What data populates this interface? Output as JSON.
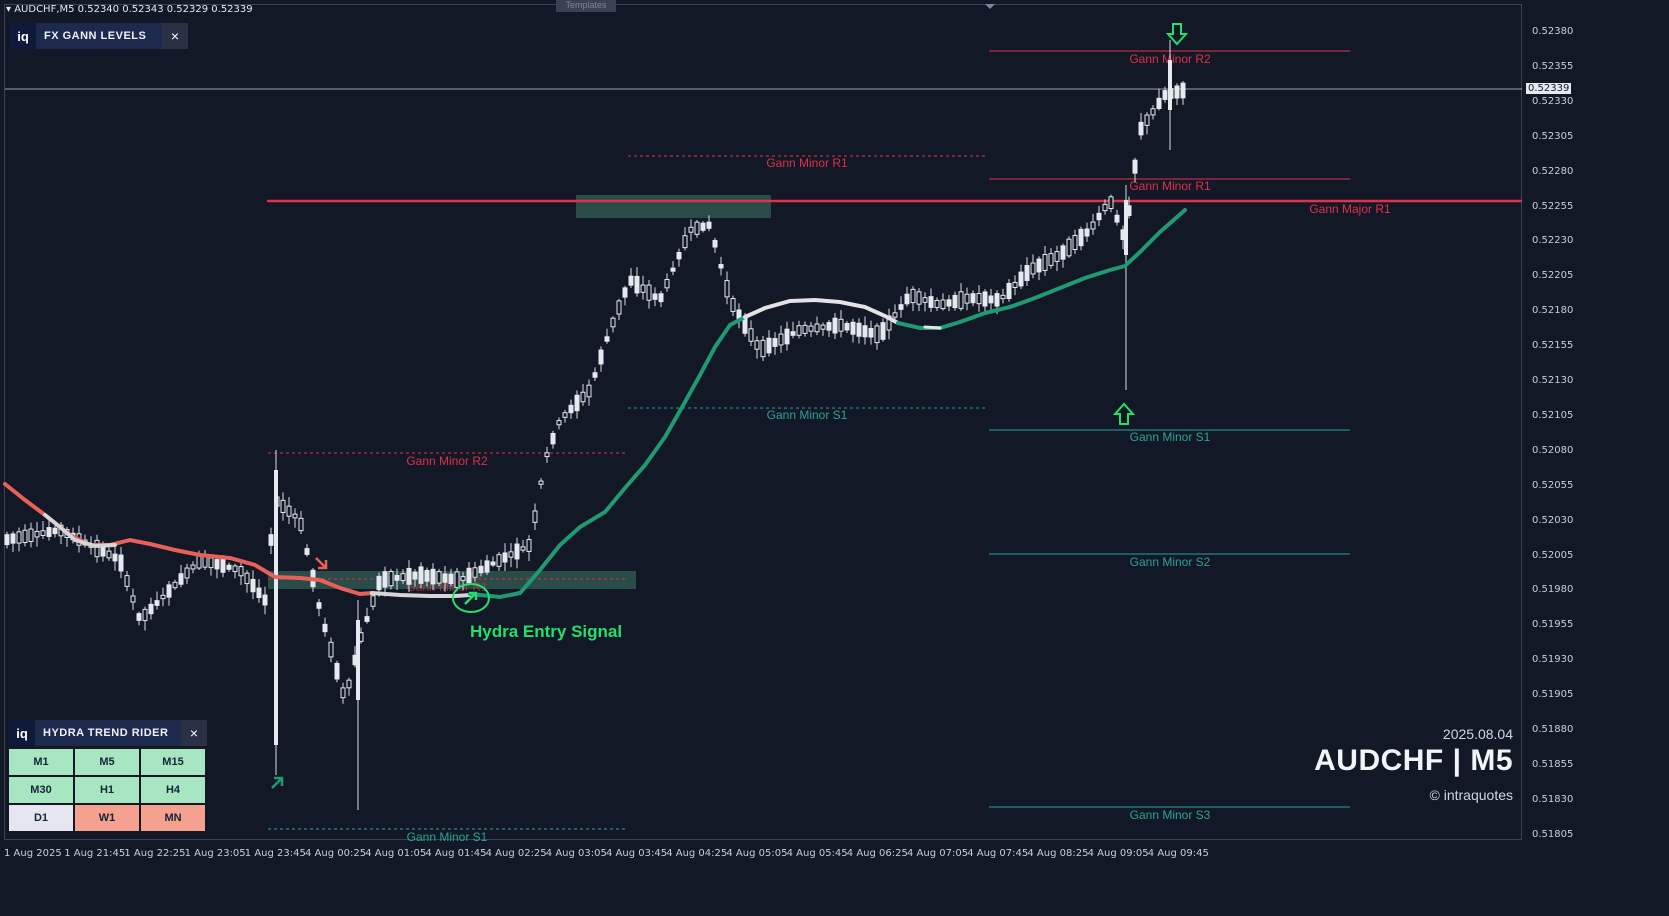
{
  "header": {
    "symbol_line": "AUDCHF,M5  0.52340 0.52343 0.52329 0.52339",
    "templates_label": "Templates"
  },
  "fx_gann_panel": {
    "logo": "iq",
    "title": "FX GANN LEVELS",
    "close": "×"
  },
  "hydra_panel": {
    "logo": "iq",
    "title": "HYDRA TREND RIDER",
    "close": "×",
    "timeframes": [
      {
        "label": "M1",
        "color": "#a8e6c1"
      },
      {
        "label": "M5",
        "color": "#a8e6c1"
      },
      {
        "label": "M15",
        "color": "#a8e6c1"
      },
      {
        "label": "M30",
        "color": "#a8e6c1"
      },
      {
        "label": "H1",
        "color": "#a8e6c1"
      },
      {
        "label": "H4",
        "color": "#a8e6c1"
      },
      {
        "label": "D1",
        "color": "#e6e6f0"
      },
      {
        "label": "W1",
        "color": "#f5a18f"
      },
      {
        "label": "MN",
        "color": "#f5a18f"
      }
    ]
  },
  "watermark": {
    "date": "2025.08.04",
    "symbol": "AUDCHF | M5",
    "copyright": "© intraquotes"
  },
  "entry_signal_label": "Hydra Entry Signal",
  "levels": {
    "major_r1": "Gann Major R1",
    "minor_r2": "Gann Minor R2",
    "minor_r1": "Gann Minor R1",
    "minor_s1": "Gann Minor S1",
    "minor_s2": "Gann Minor S2",
    "minor_s3": "Gann Minor S3"
  },
  "current_price": "0.52339",
  "price_axis": [
    "0.52380",
    "0.52355",
    "0.52330",
    "0.52305",
    "0.52280",
    "0.52255",
    "0.52230",
    "0.52205",
    "0.52180",
    "0.52155",
    "0.52130",
    "0.52105",
    "0.52080",
    "0.52055",
    "0.52030",
    "0.52005",
    "0.51980",
    "0.51955",
    "0.51930",
    "0.51905",
    "0.51880",
    "0.51855",
    "0.51830",
    "0.51805"
  ],
  "time_axis": [
    "1 Aug 2025",
    "1 Aug 21:45",
    "1 Aug 22:25",
    "1 Aug 23:05",
    "1 Aug 23:45",
    "4 Aug 00:25",
    "4 Aug 01:05",
    "4 Aug 01:45",
    "4 Aug 02:25",
    "4 Aug 03:05",
    "4 Aug 03:45",
    "4 Aug 04:25",
    "4 Aug 05:05",
    "4 Aug 05:45",
    "4 Aug 06:25",
    "4 Aug 07:05",
    "4 Aug 07:45",
    "4 Aug 08:25",
    "4 Aug 09:05",
    "4 Aug 09:45"
  ],
  "colors": {
    "background": "#121826",
    "bull_candle": "#e6e9f0",
    "resistance": "#e0304a",
    "support": "#2aa39a",
    "trend_up": "#1f9a73",
    "trend_down": "#e8605a",
    "trend_flat": "#d6d6d6",
    "signal": "#22e06a"
  }
}
